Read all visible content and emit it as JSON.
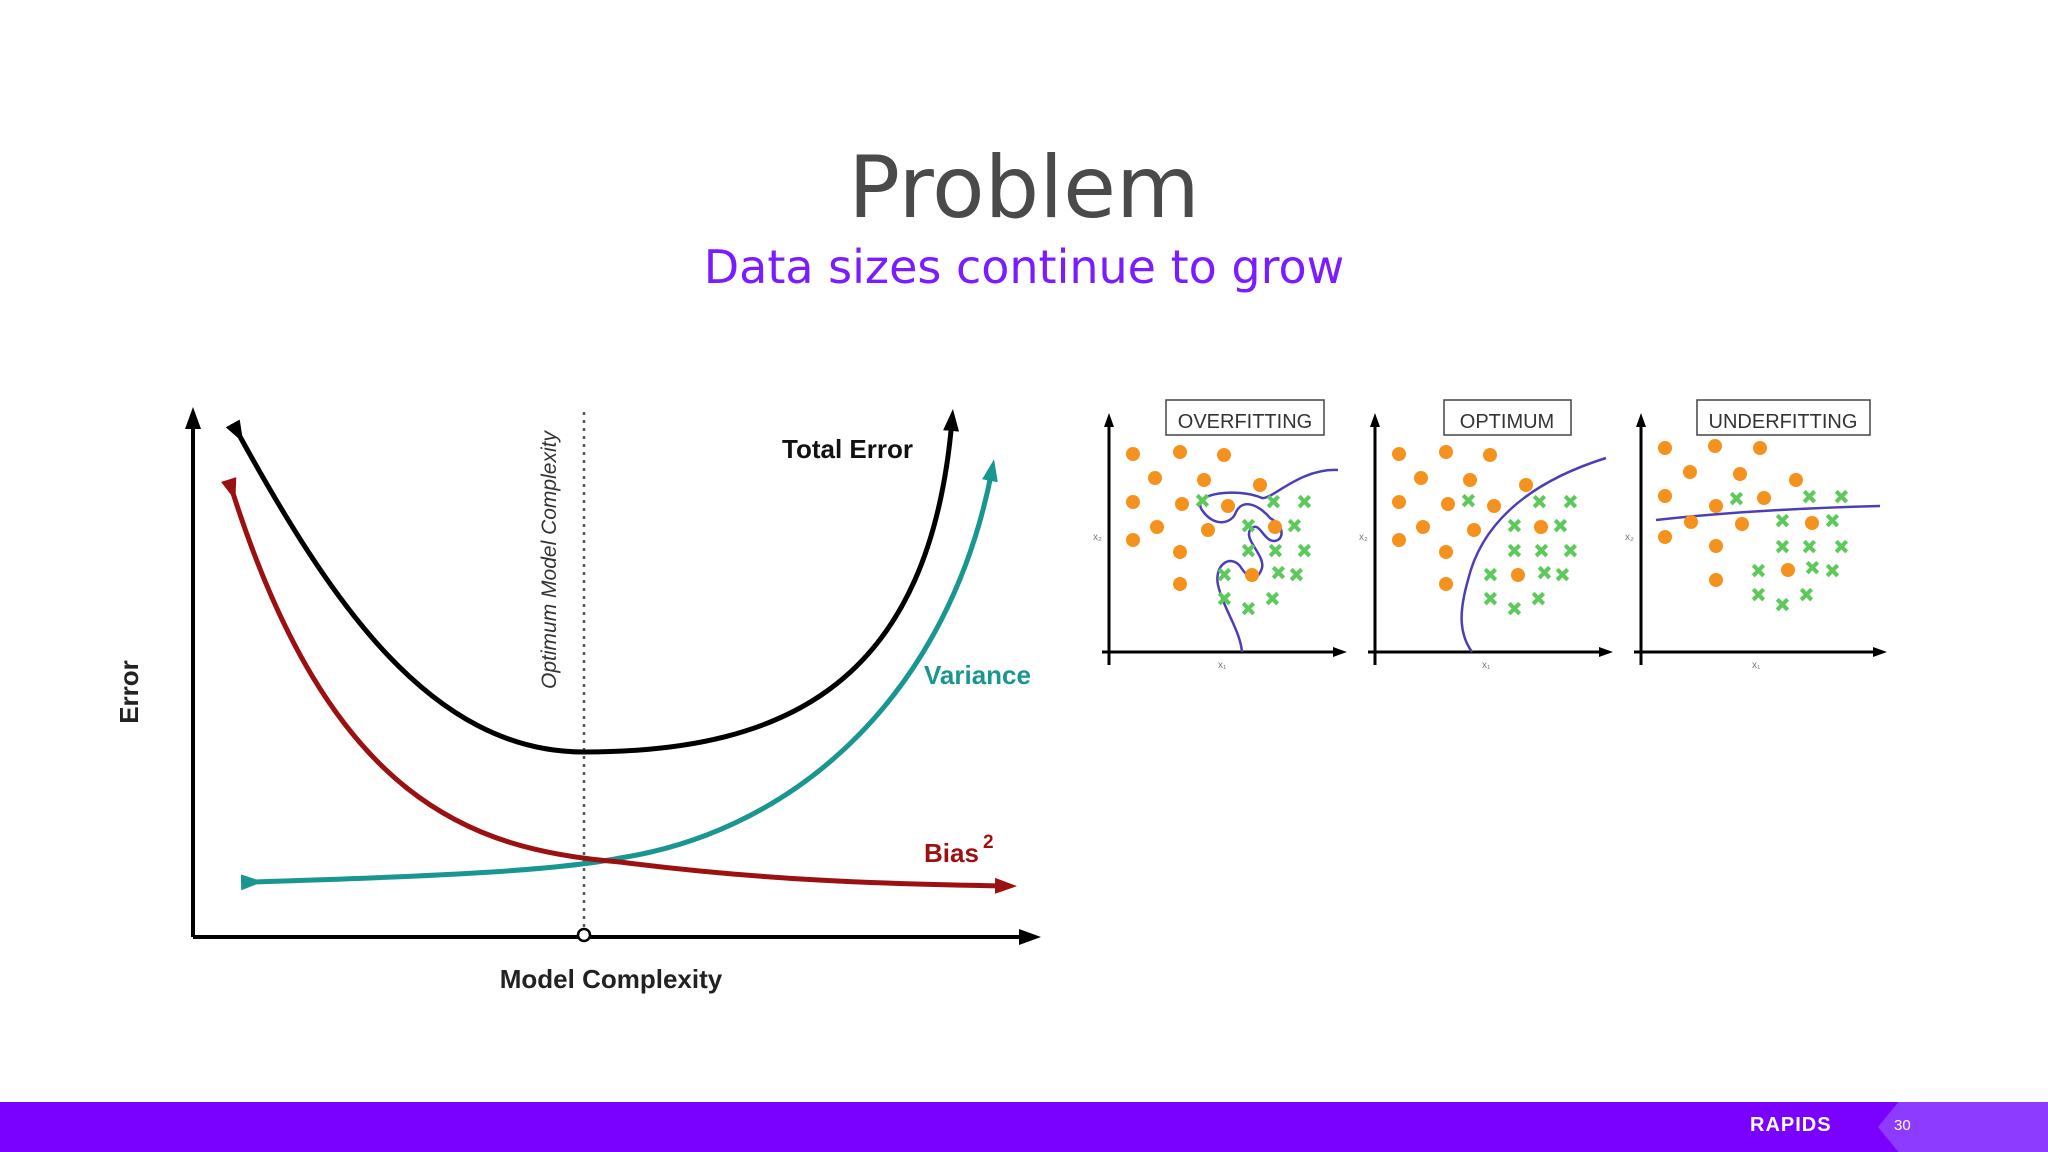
{
  "slide": {
    "title": "Problem",
    "subtitle": "Data sizes continue to grow",
    "brand": "RAPIDS",
    "page_number": "30"
  },
  "bias_variance": {
    "y_axis_label": "Error",
    "x_axis_label": "Model Complexity",
    "optimum_label": "Optimum Model Complexity",
    "total_error_label": "Total Error",
    "variance_label": "Variance",
    "bias_label": "Bias",
    "bias_superscript": "2",
    "colors": {
      "total_error": "#000000",
      "variance": "#1a9691",
      "bias": "#9b1010"
    }
  },
  "fit_panels": [
    {
      "label": "OVERFITTING",
      "x_axis": "x₁",
      "y_axis": "x₂"
    },
    {
      "label": "OPTIMUM",
      "x_axis": "x₁",
      "y_axis": "x₂"
    },
    {
      "label": "UNDERFITTING",
      "x_axis": "x₁",
      "y_axis": "x₂"
    }
  ],
  "colors": {
    "point": "#f5921e",
    "cross": "#5ec95b",
    "boundary": "#4b3fb5",
    "accent": "#7a00ff"
  }
}
